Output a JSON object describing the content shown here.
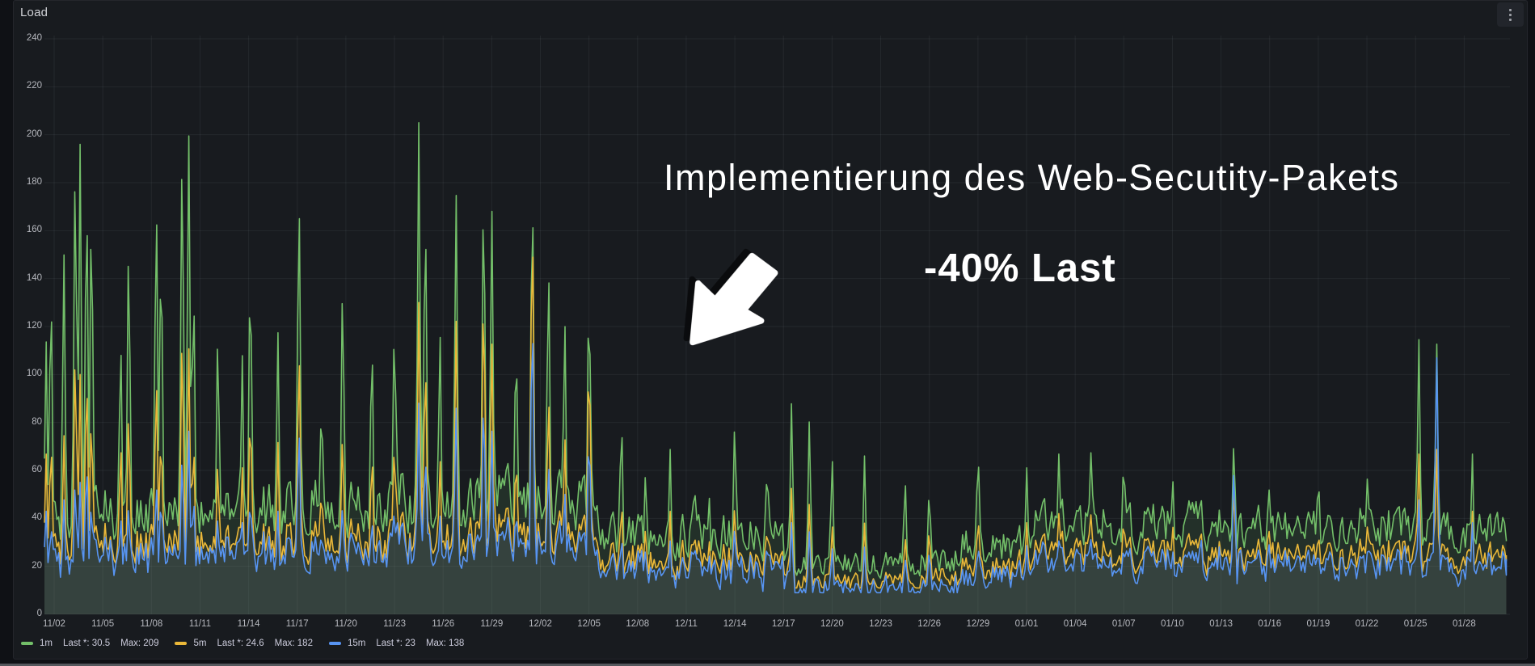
{
  "panel": {
    "title": "Load",
    "menu_icon": "kebab-menu"
  },
  "annotations": {
    "headline": "Implementierung des Web-Secutity-Pakets",
    "metric": "-40% Last",
    "arrow": "down-left-arrow"
  },
  "legend": [
    {
      "name": "1m",
      "color": "#73BF69",
      "last_text": "Last *: 30.5",
      "max_text": "Max: 209"
    },
    {
      "name": "5m",
      "color": "#EAB839",
      "last_text": "Last *: 24.6",
      "max_text": "Max: 182"
    },
    {
      "name": "15m",
      "color": "#5794F2",
      "last_text": "Last *: 23",
      "max_text": "Max: 138"
    }
  ],
  "colors": {
    "background": "#0f1115",
    "panel": "#181b1f",
    "grid": "rgba(204,210,224,0.07)",
    "axis_text": "#b6b8be",
    "green": "#73BF69",
    "yellow": "#EAB839",
    "blue": "#5794F2"
  },
  "chart_data": {
    "type": "line",
    "title": "Load",
    "legend_position": "bottom",
    "grid": true,
    "ylim": [
      0,
      240
    ],
    "y_ticks": [
      0,
      20,
      40,
      60,
      80,
      100,
      120,
      140,
      160,
      180,
      200,
      220,
      240
    ],
    "x_tick_interval_days": 3,
    "x_tick_labels": [
      "11/02",
      "11/05",
      "11/08",
      "11/11",
      "11/14",
      "11/17",
      "11/20",
      "11/23",
      "11/26",
      "11/29",
      "12/02",
      "12/05",
      "12/08",
      "12/11",
      "12/14",
      "12/17",
      "12/20",
      "12/23",
      "12/26",
      "12/29",
      "01/01",
      "01/04",
      "01/07",
      "01/10",
      "01/13",
      "01/16",
      "01/19",
      "01/22",
      "01/25",
      "01/28"
    ],
    "x_range_days": [
      -0.6,
      89.6
    ],
    "series": [
      {
        "name": "1m",
        "color": "#73BF69",
        "last": 30.5,
        "max": 209
      },
      {
        "name": "5m",
        "color": "#EAB839",
        "last": 24.6,
        "max": 182
      },
      {
        "name": "15m",
        "color": "#5794F2",
        "last": 23,
        "max": 138
      }
    ],
    "gen": {
      "seed": 97,
      "step_days": 0.11,
      "spike_halfwidth_days": 0.22,
      "yellow_factor": 0.72,
      "yellow_offset": -1,
      "blue_factor": 0.66,
      "blue_offset": -3,
      "baseline_segments": [
        [
          -0.6,
          5,
          26,
          60
        ],
        [
          5,
          12,
          26,
          56
        ],
        [
          12,
          20,
          28,
          62
        ],
        [
          20,
          33.5,
          30,
          66
        ],
        [
          33.5,
          45,
          20,
          46
        ],
        [
          45,
          55.5,
          14,
          30
        ],
        [
          55.5,
          60,
          18,
          40
        ],
        [
          60,
          84,
          24,
          50
        ],
        [
          84,
          89.7,
          22,
          46
        ]
      ],
      "spikes": [
        [
          -0.5,
          119,
          70,
          45
        ],
        [
          -0.2,
          149,
          80,
          42
        ],
        [
          0.6,
          157,
          78,
          50
        ],
        [
          1.3,
          204,
          118,
          60
        ],
        [
          1.6,
          196,
          100,
          55
        ],
        [
          2.0,
          193,
          110,
          70
        ],
        [
          2.3,
          186,
          92,
          52
        ],
        [
          4.1,
          125,
          78,
          45
        ],
        [
          4.6,
          168,
          92,
          50
        ],
        [
          6.3,
          188,
          108,
          60
        ],
        [
          6.6,
          170,
          85,
          55
        ],
        [
          7.9,
          210,
          126,
          72
        ],
        [
          8.3,
          209,
          116,
          80
        ],
        [
          8.6,
          152,
          80,
          55
        ],
        [
          10.1,
          128,
          70,
          45
        ],
        [
          11.6,
          113,
          64,
          40
        ],
        [
          12.1,
          160,
          95,
          55
        ],
        [
          13.8,
          123,
          75,
          45
        ],
        [
          15.1,
          191,
          120,
          85
        ],
        [
          16.5,
          100,
          60,
          40
        ],
        [
          17.8,
          150,
          82,
          50
        ],
        [
          19.6,
          127,
          75,
          45
        ],
        [
          21.0,
          135,
          80,
          50
        ],
        [
          22.5,
          205,
          130,
          88
        ],
        [
          22.9,
          186,
          118,
          75
        ],
        [
          23.8,
          127,
          70,
          45
        ],
        [
          24.8,
          183,
          128,
          90
        ],
        [
          26.5,
          196,
          148,
          100
        ],
        [
          27.0,
          176,
          118,
          80
        ],
        [
          28.5,
          127,
          75,
          50
        ],
        [
          29.5,
          197,
          182,
          138
        ],
        [
          30.5,
          160,
          100,
          70
        ],
        [
          31.5,
          132,
          80,
          55
        ],
        [
          33.0,
          149,
          120,
          85
        ],
        [
          35.0,
          90,
          52,
          36
        ],
        [
          36.5,
          66,
          40,
          30
        ],
        [
          38.0,
          72,
          45,
          32
        ],
        [
          39.5,
          64,
          40,
          30
        ],
        [
          40.4,
          56,
          35,
          28
        ],
        [
          42.0,
          88,
          50,
          40
        ],
        [
          44.0,
          70,
          42,
          34
        ],
        [
          45.5,
          92,
          55,
          40
        ],
        [
          46.6,
          84,
          48,
          36
        ],
        [
          48.0,
          70,
          40,
          30
        ],
        [
          50.0,
          66,
          38,
          28
        ],
        [
          52.5,
          62,
          36,
          26
        ],
        [
          54.0,
          58,
          40,
          30
        ],
        [
          57.0,
          75,
          45,
          32
        ],
        [
          60.0,
          64,
          40,
          30
        ],
        [
          62.0,
          70,
          44,
          32
        ],
        [
          64.0,
          78,
          48,
          36
        ],
        [
          66.0,
          74,
          46,
          33
        ],
        [
          69.0,
          64,
          42,
          30
        ],
        [
          72.8,
          80,
          58,
          67
        ],
        [
          75.0,
          60,
          40,
          30
        ],
        [
          78.0,
          66,
          40,
          30
        ],
        [
          81.0,
          62,
          40,
          28
        ],
        [
          84.2,
          120,
          70,
          50
        ],
        [
          85.3,
          118,
          72,
          112
        ],
        [
          87.5,
          70,
          45,
          40
        ],
        [
          89.0,
          55,
          35,
          25
        ]
      ]
    }
  }
}
